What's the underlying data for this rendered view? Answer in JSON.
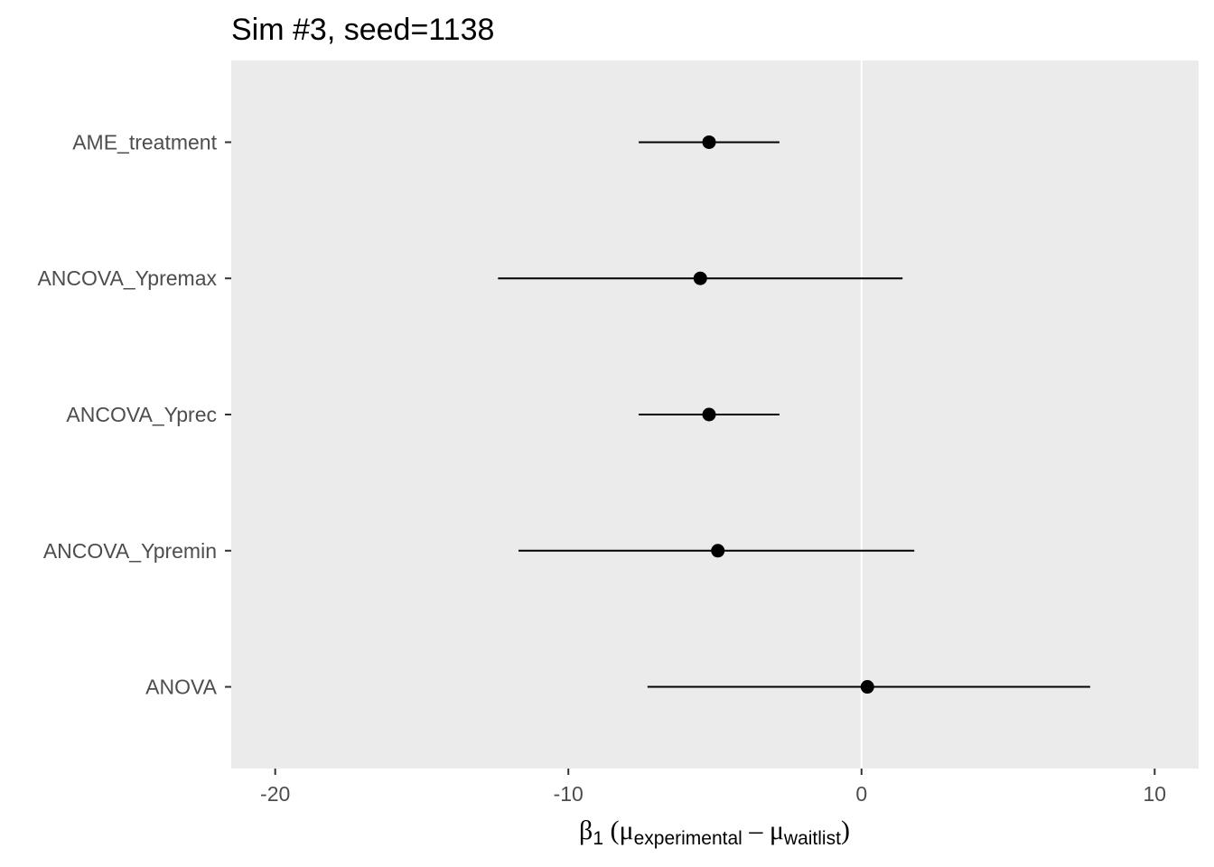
{
  "chart_data": {
    "type": "scatter",
    "subtype": "point-range",
    "title": "Sim #3, seed=1138",
    "xlabel": {
      "beta": "β",
      "beta_sub": "1",
      "open": " (",
      "mu1": "μ",
      "mu1_sub": "experimental",
      "minus": " – ",
      "mu2": "μ",
      "mu2_sub": "waitlist",
      "close": ")"
    },
    "ylabel": "",
    "xlim": [
      -21.5,
      11.5
    ],
    "x_ticks": [
      -20,
      -10,
      0,
      10
    ],
    "x_tick_labels": [
      "-20",
      "-10",
      "0",
      "10"
    ],
    "reference_line_x": 0,
    "grid": false,
    "panel_color": "#ebebeb",
    "point_color": "#000000",
    "categories": [
      "AME_treatment",
      "ANCOVA_Ypremax",
      "ANCOVA_Yprec",
      "ANCOVA_Ypremin",
      "ANOVA"
    ],
    "estimates": [
      -5.2,
      -5.5,
      -5.2,
      -4.9,
      0.2
    ],
    "lower": [
      -7.6,
      -12.4,
      -7.6,
      -11.7,
      -7.3
    ],
    "upper": [
      -2.8,
      1.4,
      -2.8,
      1.8,
      7.8
    ]
  }
}
